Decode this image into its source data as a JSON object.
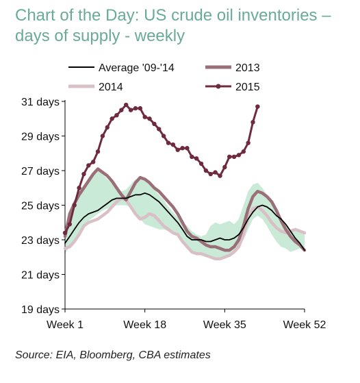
{
  "title": "Chart of the Day: US crude oil inventories – days of supply - weekly",
  "source": "Source: EIA, Bloomberg, CBA estimates",
  "chart_data": {
    "type": "line",
    "title": "Chart of the Day: US crude oil inventories – days of supply - weekly",
    "xlabel": "",
    "ylabel": "",
    "xlim": [
      1,
      52
    ],
    "ylim": [
      19,
      31
    ],
    "x_ticks": [
      1,
      18,
      35,
      52
    ],
    "x_tick_labels": [
      "Week 1",
      "Week 18",
      "Week 35",
      "Week 52"
    ],
    "y_ticks": [
      19,
      21,
      23,
      25,
      27,
      29,
      31
    ],
    "y_tick_labels": [
      "19 days",
      "21 days",
      "23 days",
      "25 days",
      "27 days",
      "29 days",
      "31 days"
    ],
    "legend_position": "top",
    "colors": {
      "average": "#000000",
      "y2013": "#9a6f78",
      "y2014": "#d9c0c6",
      "y2015": "#6e2a3e",
      "band": "#c9ead7"
    },
    "band": {
      "x": [
        1,
        2,
        3,
        4,
        5,
        6,
        7,
        8,
        9,
        10,
        11,
        12,
        13,
        14,
        15,
        16,
        17,
        18,
        19,
        20,
        21,
        22,
        23,
        24,
        25,
        26,
        27,
        28,
        29,
        30,
        31,
        32,
        33,
        34,
        35,
        36,
        37,
        38,
        39,
        40,
        41,
        42,
        43,
        44,
        45,
        46,
        47,
        48,
        49,
        50,
        51,
        52
      ],
      "lower": [
        22.2,
        22.6,
        23.0,
        23.4,
        23.8,
        24.1,
        24.3,
        24.5,
        24.7,
        24.8,
        24.9,
        25.0,
        25.0,
        25.0,
        24.9,
        24.6,
        24.2,
        23.9,
        23.8,
        23.7,
        23.6,
        23.6,
        23.5,
        23.4,
        23.2,
        22.8,
        22.5,
        22.3,
        22.2,
        22.1,
        22.0,
        22.0,
        21.9,
        21.9,
        22.0,
        22.2,
        22.4,
        22.6,
        23.0,
        23.6,
        24.2,
        24.4,
        24.2,
        23.8,
        23.3,
        22.9,
        22.6,
        22.5,
        22.3,
        22.4,
        22.5,
        22.4
      ],
      "upper": [
        23.5,
        24.6,
        25.3,
        25.8,
        26.2,
        26.6,
        26.9,
        27.0,
        26.8,
        26.5,
        26.3,
        26.0,
        25.8,
        25.9,
        26.2,
        26.5,
        26.5,
        26.4,
        26.2,
        25.9,
        25.6,
        25.3,
        24.9,
        24.6,
        24.3,
        24.0,
        23.8,
        23.5,
        23.3,
        23.2,
        23.3,
        23.8,
        24.0,
        23.9,
        24.0,
        24.1,
        23.9,
        24.2,
        25.0,
        25.8,
        26.2,
        26.3,
        26.0,
        25.6,
        25.1,
        24.6,
        24.2,
        23.9,
        23.6,
        23.5,
        23.4,
        23.4
      ]
    },
    "series": [
      {
        "name": "Average '09-'14",
        "key": "average",
        "x": [
          1,
          2,
          3,
          4,
          5,
          6,
          7,
          8,
          9,
          10,
          11,
          12,
          13,
          14,
          15,
          16,
          17,
          18,
          19,
          20,
          21,
          22,
          23,
          24,
          25,
          26,
          27,
          28,
          29,
          30,
          31,
          32,
          33,
          34,
          35,
          36,
          37,
          38,
          39,
          40,
          41,
          42,
          43,
          44,
          45,
          46,
          47,
          48,
          49,
          50,
          51,
          52
        ],
        "values": [
          22.8,
          23.2,
          23.6,
          24.0,
          24.3,
          24.5,
          24.6,
          24.7,
          24.9,
          25.1,
          25.3,
          25.4,
          25.4,
          25.4,
          25.5,
          25.6,
          25.6,
          25.7,
          25.6,
          25.4,
          25.2,
          24.9,
          24.6,
          24.3,
          24.0,
          23.6,
          23.2,
          23.0,
          23.0,
          23.0,
          22.9,
          22.9,
          23.0,
          23.1,
          23.0,
          23.0,
          23.1,
          23.3,
          23.7,
          24.2,
          24.6,
          24.9,
          25.0,
          24.9,
          24.7,
          24.4,
          24.2,
          23.9,
          23.5,
          23.1,
          22.8,
          22.4
        ]
      },
      {
        "name": "2013",
        "key": "y2013",
        "x": [
          1,
          2,
          3,
          4,
          5,
          6,
          7,
          8,
          9,
          10,
          11,
          12,
          13,
          14,
          15,
          16,
          17,
          18,
          19,
          20,
          21,
          22,
          23,
          24,
          25,
          26,
          27,
          28,
          29,
          30,
          31,
          32,
          33,
          34,
          35,
          36,
          37,
          38,
          39,
          40,
          41,
          42,
          43,
          44,
          45,
          46,
          47,
          48,
          49,
          50,
          51,
          52
        ],
        "values": [
          23.2,
          24.5,
          25.1,
          25.6,
          26.0,
          26.4,
          26.8,
          27.1,
          26.9,
          26.7,
          26.4,
          26.0,
          25.6,
          25.3,
          25.8,
          26.3,
          26.6,
          26.5,
          26.3,
          26.0,
          25.8,
          25.5,
          25.2,
          24.9,
          24.5,
          24.0,
          23.5,
          23.2,
          23.1,
          22.9,
          22.7,
          22.6,
          22.6,
          22.5,
          22.4,
          22.4,
          22.6,
          23.0,
          23.8,
          24.8,
          25.5,
          25.8,
          25.7,
          25.5,
          25.2,
          24.7,
          24.1,
          23.6,
          23.2,
          22.9,
          22.7,
          22.4
        ]
      },
      {
        "name": "2014",
        "key": "y2014",
        "x": [
          1,
          2,
          3,
          4,
          5,
          6,
          7,
          8,
          9,
          10,
          11,
          12,
          13,
          14,
          15,
          16,
          17,
          18,
          19,
          20,
          21,
          22,
          23,
          24,
          25,
          26,
          27,
          28,
          29,
          30,
          31,
          32,
          33,
          34,
          35,
          36,
          37,
          38,
          39,
          40,
          41,
          42,
          43,
          44,
          45,
          46,
          47,
          48,
          49,
          50,
          51,
          52
        ],
        "values": [
          22.5,
          22.6,
          22.9,
          23.3,
          23.8,
          24.0,
          24.1,
          24.2,
          24.4,
          24.6,
          24.9,
          25.2,
          25.4,
          25.3,
          24.9,
          24.5,
          24.2,
          24.3,
          24.5,
          24.4,
          24.1,
          23.8,
          23.6,
          23.4,
          23.3,
          22.9,
          22.6,
          22.3,
          22.2,
          22.2,
          22.1,
          22.0,
          21.9,
          21.9,
          22.0,
          22.1,
          22.3,
          22.6,
          23.3,
          24.3,
          24.8,
          24.9,
          24.7,
          24.4,
          24.0,
          23.7,
          23.5,
          23.4,
          23.5,
          23.6,
          23.5,
          23.4
        ]
      },
      {
        "name": "2015",
        "key": "y2015",
        "x": [
          1,
          2,
          3,
          4,
          5,
          6,
          7,
          8,
          9,
          10,
          11,
          12,
          13,
          14,
          15,
          16,
          17,
          18,
          19,
          20,
          21,
          22,
          23,
          24,
          25,
          26,
          27,
          28,
          29,
          30,
          31,
          32,
          33,
          34,
          35,
          36,
          37,
          38,
          39,
          40
        ],
        "values": [
          23.4,
          23.9,
          25.0,
          26.0,
          26.8,
          27.3,
          27.5,
          28.1,
          29.0,
          29.5,
          30.0,
          30.2,
          30.5,
          30.8,
          30.5,
          30.6,
          30.6,
          30.1,
          30.0,
          29.7,
          29.4,
          29.0,
          28.6,
          28.5,
          28.2,
          28.3,
          28.3,
          27.8,
          27.7,
          27.4,
          27.0,
          26.8,
          26.9,
          26.7,
          27.2,
          27.8,
          27.8,
          27.9,
          28.1,
          28.6
        ]
      }
    ],
    "series_2015_tail": {
      "x": [
        40,
        41,
        42
      ],
      "values": [
        28.6,
        29.8,
        30.7
      ]
    }
  }
}
